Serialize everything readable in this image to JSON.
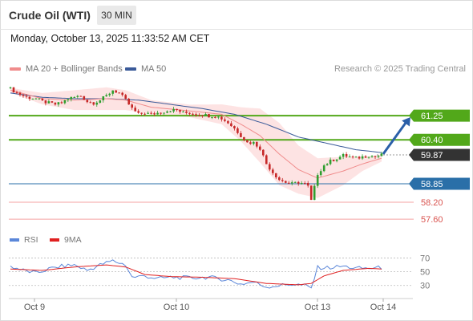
{
  "header": {
    "instrument": "Crude Oil (WTI)",
    "timeframe": "30 MIN",
    "datetime": "Monday, October 13, 2025 11:33:52 AM CET",
    "attribution": "Research © 2025 Trading Central"
  },
  "legend": {
    "items": [
      {
        "label": "MA 20 + Bollinger Bands",
        "color": "#f08c8c"
      },
      {
        "label": "MA 50",
        "color": "#3a5a99"
      }
    ],
    "rsi_items": [
      {
        "label": "RSI",
        "color": "#5b87d9"
      },
      {
        "label": "9MA",
        "color": "#e02020"
      }
    ]
  },
  "colors": {
    "resistance": "#52a81a",
    "pivot": "#2a6fa8",
    "support": "#f5a3a3",
    "support_text": "#d9534f",
    "current": "#333333",
    "arrow": "#2a5fa8",
    "bullish": "#2f9e2f",
    "bearish": "#c62828",
    "bollinger_fill": "#fde0e0",
    "ma20": "#f08c8c",
    "ma50": "#3a5a99"
  },
  "chart_data": [
    {
      "type": "candlestick",
      "title": "Crude Oil (WTI)",
      "timeframe": "30 MIN",
      "x_ticks": [
        "Oct 9",
        "Oct 10",
        "Oct 13",
        "Oct 14"
      ],
      "ylim": [
        57.35,
        62.5
      ],
      "levels": [
        {
          "value": 61.25,
          "label": "61.25",
          "kind": "resistance"
        },
        {
          "value": 60.4,
          "label": "60.40",
          "kind": "resistance"
        },
        {
          "value": 59.87,
          "label": "59.87",
          "kind": "current"
        },
        {
          "value": 58.85,
          "label": "58.85",
          "kind": "pivot"
        },
        {
          "value": 58.2,
          "label": "58.20",
          "kind": "support"
        },
        {
          "value": 57.6,
          "label": "57.60",
          "kind": "support"
        }
      ],
      "expected_move": {
        "from": 59.9,
        "to": 61.2
      },
      "close_anchors": [
        [
          0,
          62.2
        ],
        [
          2,
          62.05
        ],
        [
          5,
          61.9
        ],
        [
          8,
          61.85
        ],
        [
          10,
          61.75
        ],
        [
          12,
          61.7
        ],
        [
          14,
          61.65
        ],
        [
          16,
          61.7
        ],
        [
          18,
          61.85
        ],
        [
          20,
          61.9
        ],
        [
          22,
          61.95
        ],
        [
          24,
          61.75
        ],
        [
          26,
          61.7
        ],
        [
          28,
          61.8
        ],
        [
          30,
          61.95
        ],
        [
          32,
          62.15
        ],
        [
          34,
          62.05
        ],
        [
          36,
          61.8
        ],
        [
          38,
          61.5
        ],
        [
          40,
          61.3
        ],
        [
          42,
          61.35
        ],
        [
          44,
          61.3
        ],
        [
          46,
          61.35
        ],
        [
          48,
          61.4
        ],
        [
          50,
          61.45
        ],
        [
          52,
          61.45
        ],
        [
          54,
          61.35
        ],
        [
          56,
          61.35
        ],
        [
          58,
          61.3
        ],
        [
          60,
          61.3
        ],
        [
          62,
          61.25
        ],
        [
          64,
          61.25
        ],
        [
          66,
          61.15
        ],
        [
          68,
          61.0
        ],
        [
          70,
          60.8
        ],
        [
          72,
          60.55
        ],
        [
          74,
          60.3
        ],
        [
          76,
          60.3
        ],
        [
          78,
          60.1
        ],
        [
          80,
          59.55
        ],
        [
          82,
          59.25
        ],
        [
          84,
          59.0
        ],
        [
          86,
          58.9
        ],
        [
          88,
          58.85
        ],
        [
          90,
          58.9
        ],
        [
          92,
          58.85
        ],
        [
          93,
          58.75
        ],
        [
          94,
          58.25
        ],
        [
          96,
          59.2
        ],
        [
          98,
          59.5
        ],
        [
          100,
          59.65
        ],
        [
          102,
          59.75
        ],
        [
          104,
          59.85
        ],
        [
          106,
          59.8
        ],
        [
          108,
          59.75
        ],
        [
          110,
          59.8
        ],
        [
          112,
          59.85
        ],
        [
          114,
          59.8
        ],
        [
          116,
          59.87
        ]
      ],
      "ma20_anchors": [
        [
          0,
          62.15
        ],
        [
          10,
          61.85
        ],
        [
          20,
          61.8
        ],
        [
          30,
          61.85
        ],
        [
          36,
          61.8
        ],
        [
          44,
          61.55
        ],
        [
          56,
          61.42
        ],
        [
          66,
          61.3
        ],
        [
          72,
          60.95
        ],
        [
          78,
          60.55
        ],
        [
          84,
          59.9
        ],
        [
          90,
          59.35
        ],
        [
          96,
          59.05
        ],
        [
          104,
          59.3
        ],
        [
          110,
          59.55
        ],
        [
          116,
          59.75
        ]
      ],
      "ma50_anchors": [
        [
          0,
          62.05
        ],
        [
          10,
          61.9
        ],
        [
          20,
          61.85
        ],
        [
          30,
          61.85
        ],
        [
          40,
          61.8
        ],
        [
          50,
          61.65
        ],
        [
          60,
          61.5
        ],
        [
          70,
          61.3
        ],
        [
          80,
          60.95
        ],
        [
          90,
          60.5
        ],
        [
          100,
          60.25
        ],
        [
          108,
          60.05
        ],
        [
          116,
          59.95
        ]
      ],
      "bb_width_anchors": [
        [
          0,
          0.08
        ],
        [
          10,
          0.2
        ],
        [
          20,
          0.35
        ],
        [
          30,
          0.4
        ],
        [
          36,
          0.35
        ],
        [
          44,
          0.25
        ],
        [
          56,
          0.22
        ],
        [
          66,
          0.35
        ],
        [
          72,
          0.6
        ],
        [
          78,
          0.95
        ],
        [
          84,
          1.1
        ],
        [
          90,
          0.85
        ],
        [
          96,
          0.7
        ],
        [
          104,
          0.5
        ],
        [
          110,
          0.25
        ],
        [
          116,
          0.12
        ]
      ]
    },
    {
      "type": "line",
      "title": "RSI",
      "ylim": [
        18,
        80
      ],
      "y_ticks": [
        70,
        50,
        30
      ],
      "series": [
        {
          "name": "RSI",
          "color": "#5b87d9",
          "values": [
            [
              0,
              58
            ],
            [
              4,
              52
            ],
            [
              8,
              48
            ],
            [
              12,
              54
            ],
            [
              16,
              58
            ],
            [
              20,
              60
            ],
            [
              24,
              52
            ],
            [
              28,
              60
            ],
            [
              32,
              66
            ],
            [
              36,
              60
            ],
            [
              38,
              42
            ],
            [
              42,
              44
            ],
            [
              46,
              40
            ],
            [
              50,
              42
            ],
            [
              56,
              41
            ],
            [
              62,
              42
            ],
            [
              68,
              38
            ],
            [
              72,
              32
            ],
            [
              76,
              35
            ],
            [
              80,
              28
            ],
            [
              84,
              30
            ],
            [
              88,
              32
            ],
            [
              92,
              30
            ],
            [
              94,
              26
            ],
            [
              96,
              56
            ],
            [
              100,
              56
            ],
            [
              104,
              58
            ],
            [
              108,
              55
            ],
            [
              112,
              55
            ],
            [
              116,
              56
            ]
          ]
        },
        {
          "name": "9MA",
          "color": "#e02020",
          "values": [
            [
              0,
              54
            ],
            [
              10,
              52
            ],
            [
              20,
              57
            ],
            [
              30,
              60
            ],
            [
              36,
              57
            ],
            [
              42,
              46
            ],
            [
              50,
              43
            ],
            [
              60,
              42
            ],
            [
              70,
              40
            ],
            [
              80,
              33
            ],
            [
              90,
              31
            ],
            [
              94,
              33
            ],
            [
              98,
              44
            ],
            [
              104,
              52
            ],
            [
              112,
              55
            ],
            [
              116,
              54
            ]
          ]
        }
      ]
    }
  ]
}
